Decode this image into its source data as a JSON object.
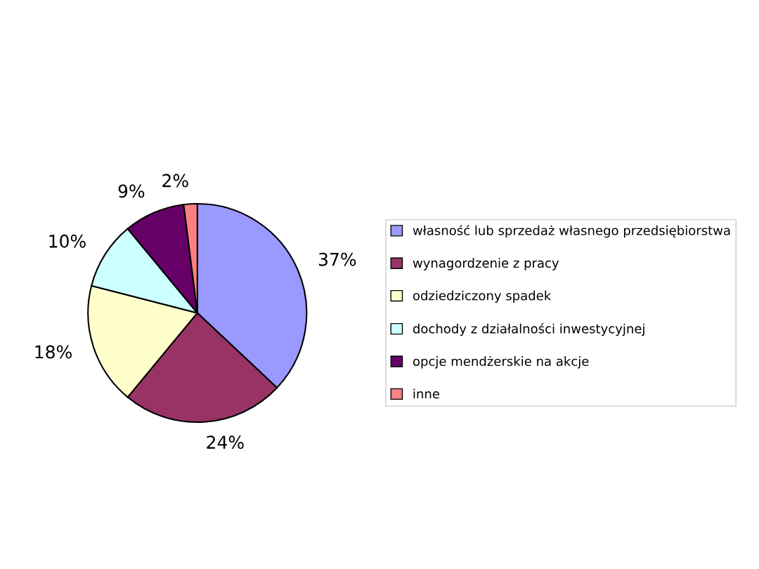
{
  "chart_data": {
    "type": "pie",
    "categories": [
      "własność lub sprzedaż własnego przedsiębiorstwa",
      "wynagordzenie z pracy",
      "odziedziczony spadek",
      "dochody z działalności inwestycyjnej",
      "opcje mendżerskie na akcje",
      "inne"
    ],
    "values": [
      37,
      24,
      18,
      10,
      9,
      2
    ],
    "value_labels": [
      "37%",
      "24%",
      "18%",
      "10%",
      "9%",
      "2%"
    ],
    "colors": [
      "#9999ff",
      "#993366",
      "#ffffcc",
      "#ccffff",
      "#660066",
      "#ff8080"
    ],
    "legend": "right"
  }
}
